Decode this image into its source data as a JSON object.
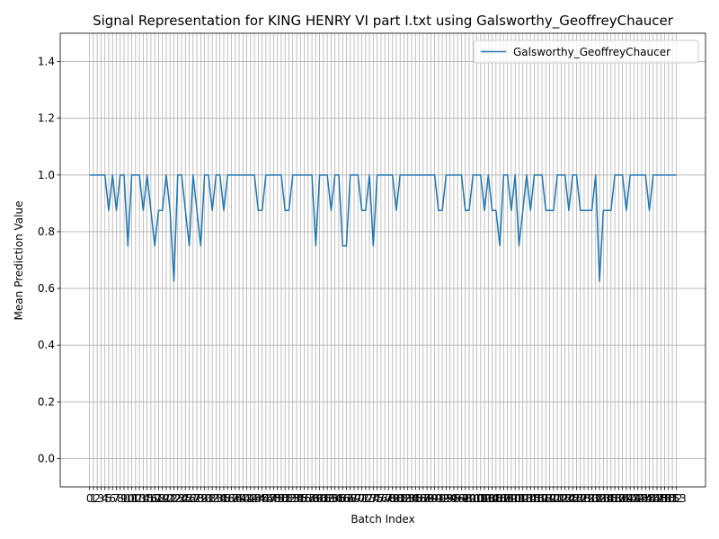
{
  "chart_data": {
    "type": "line",
    "title": "Signal Representation for KING HENRY VI part I.txt using Galsworthy_GeoffreyChaucer",
    "xlabel": "Batch Index",
    "ylabel": "Mean Prediction Value",
    "x": [
      0,
      1,
      2,
      3,
      4,
      5,
      6,
      7,
      8,
      9,
      10,
      11,
      12,
      13,
      14,
      15,
      16,
      17,
      18,
      19,
      20,
      21,
      22,
      23,
      24,
      25,
      26,
      27,
      28,
      29,
      30,
      31,
      32,
      33,
      34,
      35,
      36,
      37,
      38,
      39,
      40,
      41,
      42,
      43,
      44,
      45,
      46,
      47,
      48,
      49,
      50,
      51,
      52,
      53,
      54,
      55,
      56,
      57,
      58,
      59,
      60,
      61,
      62,
      63,
      64,
      65,
      66,
      67,
      68,
      69,
      70,
      71,
      72,
      73,
      74,
      75,
      76,
      77,
      78,
      79,
      80,
      81,
      82,
      83,
      84,
      85,
      86,
      87,
      88,
      89,
      90,
      91,
      92,
      93,
      94,
      95,
      96,
      97,
      98,
      99,
      100,
      101,
      102,
      103,
      104,
      105,
      106,
      107,
      108,
      109,
      110,
      111,
      112,
      113,
      114,
      115,
      116,
      117,
      118,
      119,
      120,
      121,
      122,
      123,
      124,
      125,
      126,
      127,
      128,
      129,
      130,
      131,
      132,
      133,
      134,
      135,
      136,
      137,
      138,
      139,
      140,
      141,
      142,
      143,
      144,
      145,
      146,
      147,
      148,
      149,
      150,
      151,
      152,
      153
    ],
    "series": [
      {
        "name": "Galsworthy_GeoffreyChaucer",
        "color": "#1f77b4",
        "values": [
          1,
          1,
          1,
          1,
          1,
          0.875,
          1,
          0.875,
          1,
          1,
          0.75,
          1,
          1,
          1,
          0.875,
          1,
          0.875,
          0.75,
          0.875,
          0.875,
          1,
          0.875,
          0.625,
          1,
          1,
          0.875,
          0.75,
          1,
          0.875,
          0.75,
          1,
          1,
          0.875,
          1,
          1,
          0.875,
          1,
          1,
          1,
          1,
          1,
          1,
          1,
          1,
          0.875,
          0.875,
          1,
          1,
          1,
          1,
          1,
          0.875,
          0.875,
          1,
          1,
          1,
          1,
          1,
          1,
          0.75,
          1,
          1,
          1,
          0.875,
          1,
          1,
          0.75,
          0.75,
          1,
          1,
          1,
          0.875,
          0.875,
          1,
          0.75,
          1,
          1,
          1,
          1,
          1,
          0.875,
          1,
          1,
          1,
          1,
          1,
          1,
          1,
          1,
          1,
          1,
          0.875,
          0.875,
          1,
          1,
          1,
          1,
          1,
          0.875,
          0.875,
          1,
          1,
          1,
          0.875,
          1,
          0.875,
          0.875,
          0.75,
          1,
          1,
          0.875,
          1,
          0.75,
          0.875,
          1,
          0.875,
          1,
          1,
          1,
          0.875,
          0.875,
          0.875,
          1,
          1,
          1,
          0.875,
          1,
          1,
          0.875,
          0.875,
          0.875,
          0.875,
          1,
          0.625,
          0.875,
          0.875,
          0.875,
          1,
          1,
          1,
          0.875,
          1,
          1,
          1,
          1,
          1,
          0.875,
          1,
          1,
          1,
          1,
          1,
          1,
          1
        ]
      }
    ],
    "xlim": [
      -7.65,
      160.65
    ],
    "xticks": [
      0,
      1,
      2,
      3,
      4,
      5,
      6,
      7,
      8,
      9,
      10,
      11,
      12,
      13,
      14,
      15,
      16,
      17,
      18,
      19,
      20,
      21,
      22,
      23,
      24,
      25,
      26,
      27,
      28,
      29,
      30,
      31,
      32,
      33,
      34,
      35,
      36,
      37,
      38,
      39,
      40,
      41,
      42,
      43,
      44,
      45,
      46,
      47,
      48,
      49,
      50,
      51,
      52,
      53,
      54,
      55,
      56,
      57,
      58,
      59,
      60,
      61,
      62,
      63,
      64,
      65,
      66,
      67,
      68,
      69,
      70,
      71,
      72,
      73,
      74,
      75,
      76,
      77,
      78,
      79,
      80,
      81,
      82,
      83,
      84,
      85,
      86,
      87,
      88,
      89,
      90,
      91,
      92,
      93,
      94,
      95,
      96,
      97,
      98,
      99,
      100,
      101,
      102,
      103,
      104,
      105,
      106,
      107,
      108,
      109,
      110,
      111,
      112,
      113,
      114,
      115,
      116,
      117,
      118,
      119,
      120,
      121,
      122,
      123,
      124,
      125,
      126,
      127,
      128,
      129,
      130,
      131,
      132,
      133,
      134,
      135,
      136,
      137,
      138,
      139,
      140,
      141,
      142,
      143,
      144,
      145,
      146,
      147,
      148,
      149,
      150,
      151,
      152,
      153
    ],
    "ylim": [
      -0.1,
      1.5
    ],
    "yticks": [
      {
        "value": 0,
        "label": "0.0"
      },
      0.2,
      0.4,
      0.6,
      0.8,
      {
        "value": 1,
        "label": "1.0"
      },
      1.2,
      1.4
    ],
    "grid": true,
    "legend": "upper right"
  }
}
